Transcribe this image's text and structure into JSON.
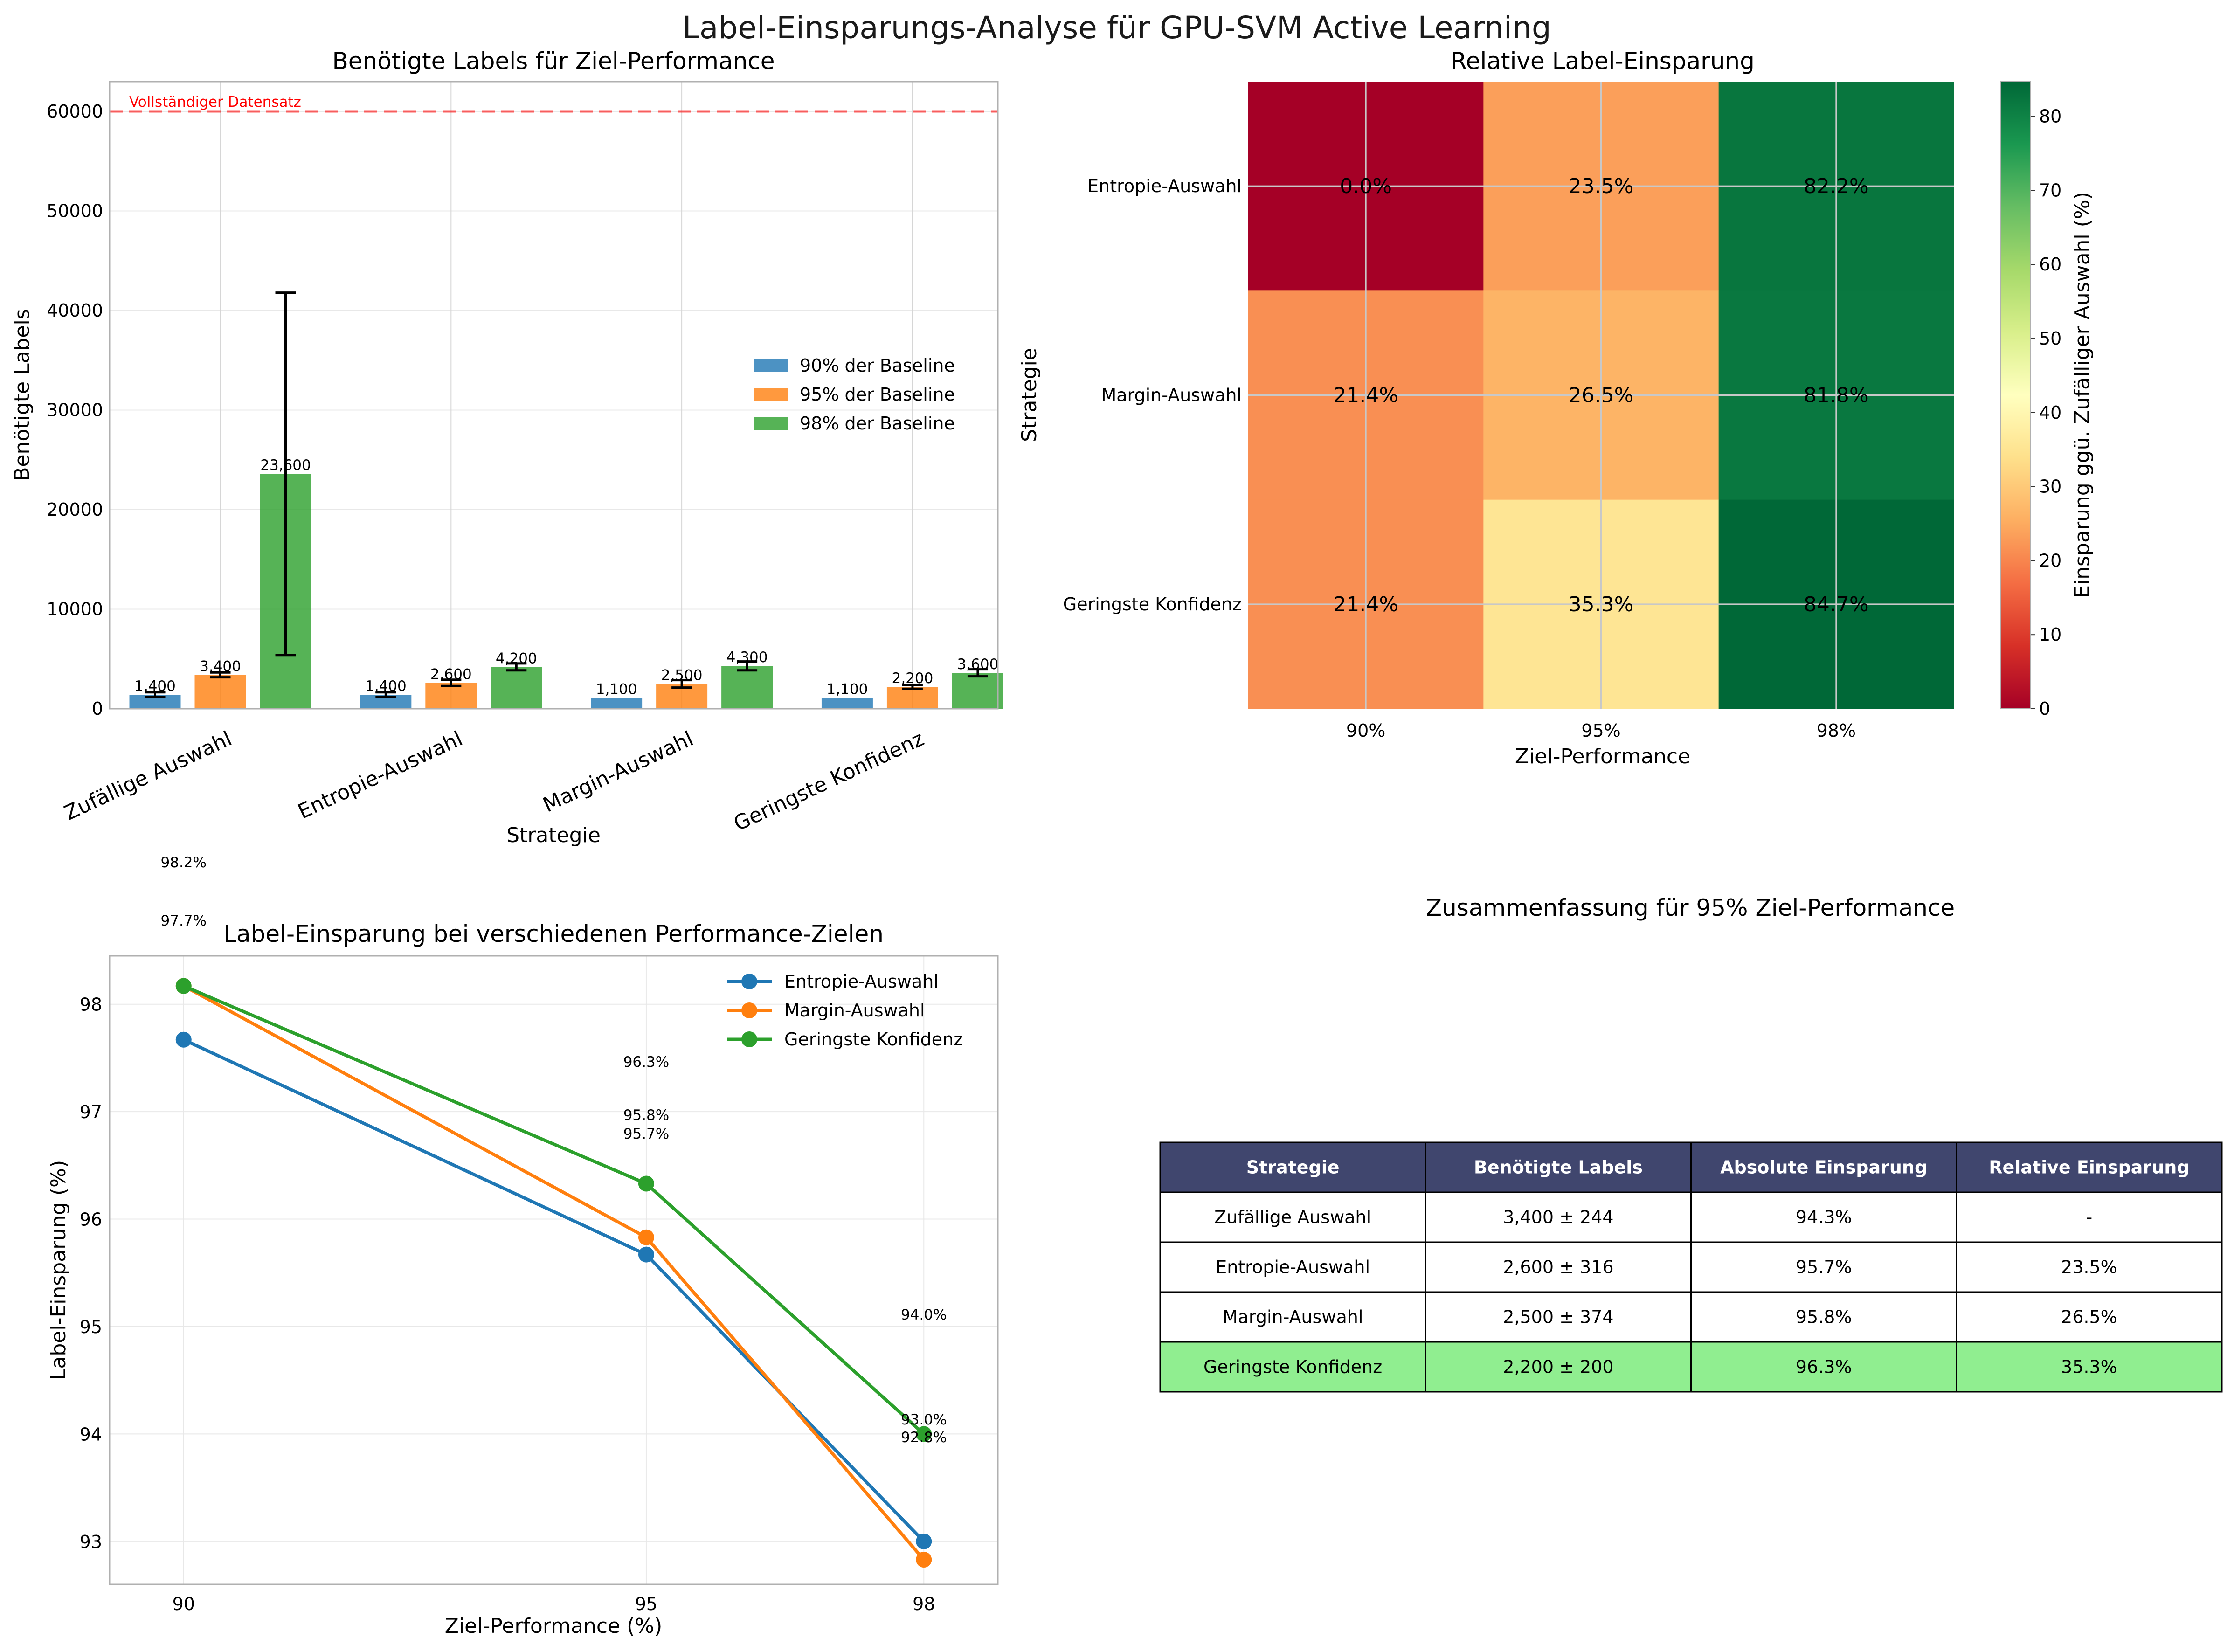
{
  "suptitle": "Label-Einsparungs-Analyse für GPU-SVM Active Learning",
  "chart_data": [
    {
      "type": "bar",
      "title": "Benötigte Labels für Ziel-Performance",
      "xlabel": "Strategie",
      "ylabel": "Benötigte Labels",
      "categories": [
        "Zufällige Auswahl",
        "Entropie-Auswahl",
        "Margin-Auswahl",
        "Geringste Konfidenz"
      ],
      "series": [
        {
          "name": "90% der Baseline",
          "values": [
            1400,
            1400,
            1100,
            1100
          ],
          "errors": [
            250,
            250,
            0,
            0
          ],
          "labels": [
            "1,400",
            "1,400",
            "1,100",
            "1,100"
          ],
          "color": "#1f77b4"
        },
        {
          "name": "95% der Baseline",
          "values": [
            3400,
            2600,
            2500,
            2200
          ],
          "errors": [
            244,
            316,
            374,
            200
          ],
          "labels": [
            "3,400",
            "2,600",
            "2,500",
            "2,200"
          ],
          "color": "#ff7f0e"
        },
        {
          "name": "98% der Baseline",
          "values": [
            23600,
            4200,
            4300,
            3600
          ],
          "errors": [
            18200,
            350,
            450,
            350
          ],
          "labels": [
            "23,600",
            "4,200",
            "4,300",
            "3,600"
          ],
          "color": "#2ca02c"
        }
      ],
      "ylim": [
        0,
        63000
      ],
      "yticks": [
        0,
        10000,
        20000,
        30000,
        40000,
        50000,
        60000
      ],
      "reference_line": {
        "value": 60000,
        "label": "Vollständiger Datensatz",
        "color": "#ff0000"
      },
      "legend": "center-right",
      "grid": true
    },
    {
      "type": "heatmap",
      "title": "Relative Label-Einsparung",
      "xlabel": "Ziel-Performance",
      "ylabel": "Strategie",
      "x": [
        "90%",
        "95%",
        "98%"
      ],
      "y": [
        "Entropie-Auswahl",
        "Margin-Auswahl",
        "Geringste Konfidenz"
      ],
      "values": [
        [
          0.0,
          23.5,
          82.2
        ],
        [
          21.4,
          26.5,
          81.8
        ],
        [
          21.4,
          35.3,
          84.7
        ]
      ],
      "cell_labels": [
        [
          "0.0%",
          "23.5%",
          "82.2%"
        ],
        [
          "21.4%",
          "26.5%",
          "81.8%"
        ],
        [
          "21.4%",
          "35.3%",
          "84.7%"
        ]
      ],
      "colormap": "RdYlGn",
      "vmin": 0,
      "vmax": 84.7,
      "colorbar_label": "Einsparung ggü. Zufälliger Auswahl (%)",
      "colorbar_ticks": [
        0,
        10,
        20,
        30,
        40,
        50,
        60,
        70,
        80
      ]
    },
    {
      "type": "line",
      "title": "Label-Einsparung bei verschiedenen Performance-Zielen",
      "xlabel": "Ziel-Performance (%)",
      "ylabel": "Label-Einsparung (%)",
      "x": [
        90,
        95,
        98
      ],
      "series": [
        {
          "name": "Entropie-Auswahl",
          "values": [
            97.67,
            95.67,
            93.0
          ],
          "color": "#1f77b4"
        },
        {
          "name": "Margin-Auswahl",
          "values": [
            98.17,
            95.83,
            92.83
          ],
          "color": "#ff7f0e"
        },
        {
          "name": "Geringste Konfidenz",
          "values": [
            98.17,
            96.33,
            94.0
          ],
          "color": "#2ca02c"
        }
      ],
      "annotations": [
        {
          "x": 90,
          "value": 98.2,
          "text": "98.2%"
        },
        {
          "x": 90,
          "value": 97.7,
          "text": "97.7%"
        },
        {
          "x": 95,
          "value": 96.3,
          "text": "96.3%"
        },
        {
          "x": 95,
          "value": 95.8,
          "text": "95.8%"
        },
        {
          "x": 95,
          "value": 95.7,
          "text": "95.7%"
        },
        {
          "x": 98,
          "value": 94.0,
          "text": "94.0%"
        },
        {
          "x": 98,
          "value": 93.0,
          "text": "93.0%"
        },
        {
          "x": 98,
          "value": 92.8,
          "text": "92.8%"
        }
      ],
      "ylim": [
        92.6,
        98.45
      ],
      "yticks": [
        93,
        94,
        95,
        96,
        97,
        98
      ],
      "xticks": [
        90,
        95,
        98
      ],
      "legend": "top-right",
      "grid": true
    },
    {
      "type": "table",
      "title": "Zusammenfassung für 95% Ziel-Performance",
      "columns": [
        "Strategie",
        "Benötigte Labels",
        "Absolute Einsparung",
        "Relative Einsparung"
      ],
      "rows": [
        [
          "Zufällige Auswahl",
          "3,400 ± 244",
          "94.3%",
          "-"
        ],
        [
          "Entropie-Auswahl",
          "2,600 ± 316",
          "95.7%",
          "23.5%"
        ],
        [
          "Margin-Auswahl",
          "2,500 ± 374",
          "95.8%",
          "26.5%"
        ],
        [
          "Geringste Konfidenz",
          "2,200 ± 200",
          "96.3%",
          "35.3%"
        ]
      ],
      "header_color": "#40466e",
      "highlight_row": 3,
      "highlight_color": "#90ee90"
    }
  ]
}
